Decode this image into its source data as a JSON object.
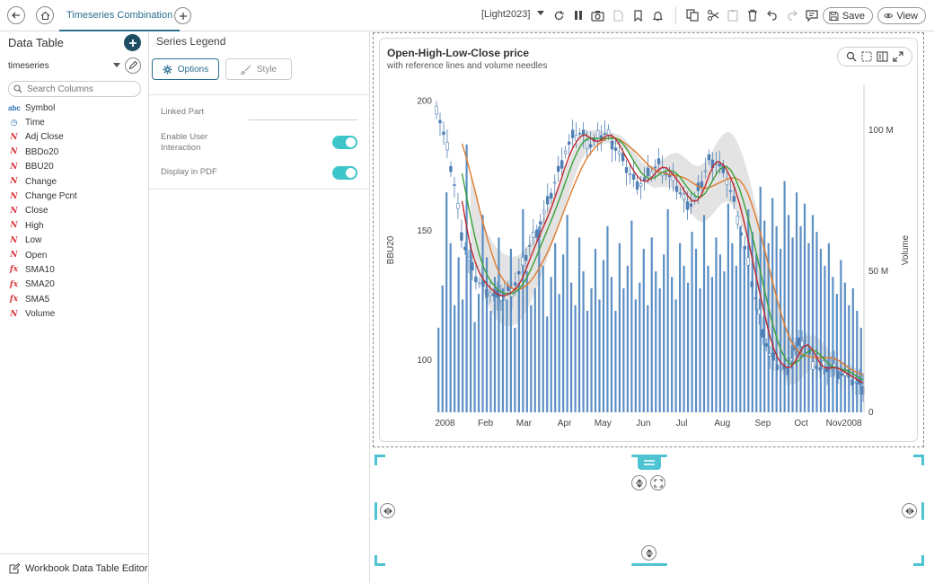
{
  "toolbar": {
    "tab_title": "Timeseries Combination",
    "theme": "[Light2023]",
    "save_label": "Save",
    "view_label": "View"
  },
  "data_table": {
    "title": "Data Table",
    "source": "timeseries",
    "search_placeholder": "Search Columns",
    "columns": [
      {
        "label": "Symbol",
        "type": "text",
        "icon": "abc"
      },
      {
        "label": "Time",
        "type": "time",
        "icon": "clock-icon"
      },
      {
        "label": "Adj Close",
        "type": "numeric",
        "icon": "numeric-icon"
      },
      {
        "label": "BBDo20",
        "type": "numeric",
        "icon": "numeric-icon"
      },
      {
        "label": "BBU20",
        "type": "numeric",
        "icon": "numeric-icon"
      },
      {
        "label": "Change",
        "type": "numeric",
        "icon": "numeric-icon"
      },
      {
        "label": "Change Pcnt",
        "type": "numeric",
        "icon": "numeric-icon"
      },
      {
        "label": "Close",
        "type": "numeric",
        "icon": "numeric-icon"
      },
      {
        "label": "High",
        "type": "numeric",
        "icon": "numeric-icon"
      },
      {
        "label": "Low",
        "type": "numeric",
        "icon": "numeric-icon"
      },
      {
        "label": "Open",
        "type": "numeric",
        "icon": "numeric-icon"
      },
      {
        "label": "SMA10",
        "type": "calculated",
        "icon": "fx"
      },
      {
        "label": "SMA20",
        "type": "calculated",
        "icon": "fx"
      },
      {
        "label": "SMA5",
        "type": "calculated",
        "icon": "fx"
      },
      {
        "label": "Volume",
        "type": "numeric",
        "icon": "numeric-icon"
      }
    ],
    "footer_label": "Workbook Data Table Editor"
  },
  "series_legend": {
    "title": "Series Legend",
    "tabs": {
      "options": "Options",
      "style": "Style"
    },
    "linked_part_label": "Linked Part",
    "enable_interaction_label": "Enable User Interaction",
    "enable_interaction_value": true,
    "display_pdf_label": "Display in PDF",
    "display_pdf_value": true
  },
  "colors": {
    "accent": "#2a6f8f",
    "toggle_on": "#3cc6c9",
    "volume_bar": "#5b8fc4",
    "band_fill": "#dcdcdc",
    "sma5": "#c0292a",
    "sma10": "#3aa13a",
    "sma20": "#e07b2d",
    "candle": "#4f7fb5"
  },
  "chart_data": {
    "type": "candlestick",
    "title": "Open-High-Low-Close price",
    "subtitle": "with reference lines and volume needles",
    "ylabel_left": "BBU20",
    "ylabel_right": "Volume",
    "yleft_ticks": [
      100,
      150,
      200
    ],
    "yright_ticks": [
      "0",
      "50 M",
      "100 M"
    ],
    "x_ticks": [
      "2008",
      "Feb",
      "Mar",
      "Apr",
      "May",
      "Jun",
      "Jul",
      "Aug",
      "Sep",
      "Oct",
      "Nov2008"
    ],
    "yleft_range": [
      80,
      205
    ],
    "yright_range": [
      0,
      115
    ],
    "price_path": [
      [
        0,
        198
      ],
      [
        0.02,
        185
      ],
      [
        0.04,
        170
      ],
      [
        0.06,
        148
      ],
      [
        0.08,
        136
      ],
      [
        0.1,
        130
      ],
      [
        0.12,
        127
      ],
      [
        0.14,
        124
      ],
      [
        0.16,
        126
      ],
      [
        0.18,
        128
      ],
      [
        0.2,
        136
      ],
      [
        0.22,
        145
      ],
      [
        0.24,
        152
      ],
      [
        0.26,
        160
      ],
      [
        0.28,
        170
      ],
      [
        0.3,
        180
      ],
      [
        0.32,
        186
      ],
      [
        0.34,
        188
      ],
      [
        0.36,
        183
      ],
      [
        0.38,
        186
      ],
      [
        0.4,
        188
      ],
      [
        0.42,
        182
      ],
      [
        0.44,
        176
      ],
      [
        0.46,
        170
      ],
      [
        0.48,
        168
      ],
      [
        0.5,
        172
      ],
      [
        0.52,
        176
      ],
      [
        0.54,
        172
      ],
      [
        0.56,
        168
      ],
      [
        0.58,
        162
      ],
      [
        0.6,
        160
      ],
      [
        0.62,
        168
      ],
      [
        0.64,
        178
      ],
      [
        0.66,
        176
      ],
      [
        0.68,
        170
      ],
      [
        0.7,
        160
      ],
      [
        0.72,
        145
      ],
      [
        0.74,
        130
      ],
      [
        0.76,
        115
      ],
      [
        0.78,
        102
      ],
      [
        0.8,
        98
      ],
      [
        0.82,
        96
      ],
      [
        0.84,
        104
      ],
      [
        0.86,
        108
      ],
      [
        0.88,
        100
      ],
      [
        0.9,
        96
      ],
      [
        0.92,
        98
      ],
      [
        0.94,
        96
      ],
      [
        0.96,
        94
      ],
      [
        0.98,
        92
      ],
      [
        1.0,
        90
      ]
    ],
    "volume_values": [
      30,
      45,
      78,
      60,
      38,
      55,
      40,
      95,
      60,
      32,
      42,
      70,
      55,
      36,
      48,
      62,
      44,
      40,
      58,
      30,
      46,
      72,
      50,
      38,
      44,
      66,
      52,
      34,
      48,
      60,
      42,
      56,
      70,
      46,
      38,
      62,
      50,
      36,
      44,
      58,
      40,
      54,
      66,
      48,
      36,
      60,
      44,
      52,
      68,
      40,
      46,
      58,
      38,
      62,
      50,
      44,
      56,
      72,
      48,
      40,
      60,
      52,
      46,
      64,
      58,
      44,
      70,
      52,
      48,
      62,
      56,
      50,
      74,
      60,
      52,
      66,
      58,
      72,
      64,
      56,
      80,
      68,
      60,
      76,
      66,
      58,
      82,
      70,
      62,
      78,
      66,
      74,
      60,
      70,
      64,
      58,
      52,
      60,
      48,
      42,
      54,
      46,
      38,
      44,
      36,
      30
    ]
  }
}
